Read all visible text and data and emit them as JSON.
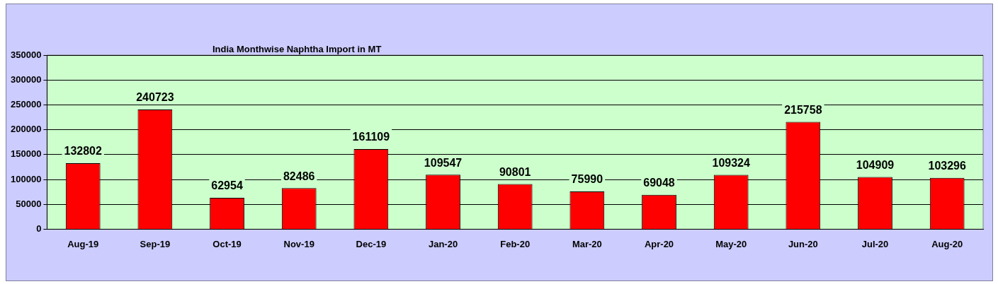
{
  "chart_data": {
    "type": "bar",
    "title": "India Monthwise Naphtha Import in MT",
    "categories": [
      "Aug-19",
      "Sep-19",
      "Oct-19",
      "Nov-19",
      "Dec-19",
      "Jan-20",
      "Feb-20",
      "Mar-20",
      "Apr-20",
      "May-20",
      "Jun-20",
      "Jul-20",
      "Aug-20"
    ],
    "values": [
      132802,
      240723,
      62954,
      82486,
      161109,
      109547,
      90801,
      75990,
      69048,
      109324,
      215758,
      104909,
      103296
    ],
    "color": "#ff0000",
    "ylim": [
      0,
      350000
    ],
    "yticks": [
      0,
      50000,
      100000,
      150000,
      200000,
      250000,
      300000,
      350000
    ],
    "grid": "y",
    "legend": false,
    "data_labels": true
  }
}
